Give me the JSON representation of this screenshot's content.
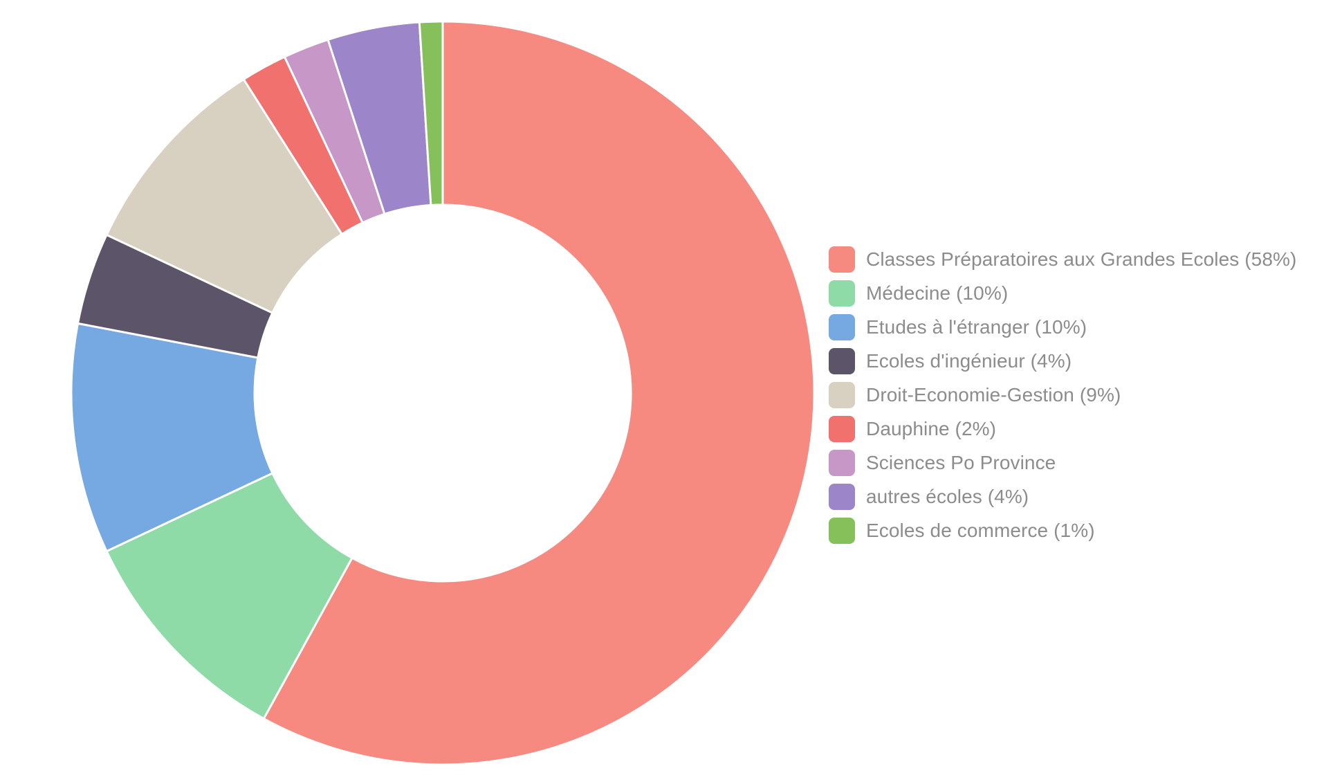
{
  "chart_data": {
    "type": "pie",
    "donut": true,
    "title": "",
    "legend_position": "right",
    "series": [
      {
        "label": "Classes Préparatoires aux Grandes Ecoles (58%)",
        "value": 58,
        "color": "#f78a80"
      },
      {
        "label": "Médecine (10%)",
        "value": 10,
        "color": "#8edba8"
      },
      {
        "label": "Etudes à l'étranger (10%)",
        "value": 10,
        "color": "#76a9e2"
      },
      {
        "label": "Ecoles d'ingénieur (4%)",
        "value": 4,
        "color": "#5c5468"
      },
      {
        "label": "Droit-Economie-Gestion (9%)",
        "value": 9,
        "color": "#d8d0c0"
      },
      {
        "label": "Dauphine (2%)",
        "value": 2,
        "color": "#f0716e"
      },
      {
        "label": "Sciences Po Province",
        "value": 2,
        "color": "#c697c7"
      },
      {
        "label": "autres écoles (4%)",
        "value": 4,
        "color": "#9c85c9"
      },
      {
        "label": "Ecoles de commerce (1%)",
        "value": 1,
        "color": "#86c05a"
      }
    ]
  }
}
